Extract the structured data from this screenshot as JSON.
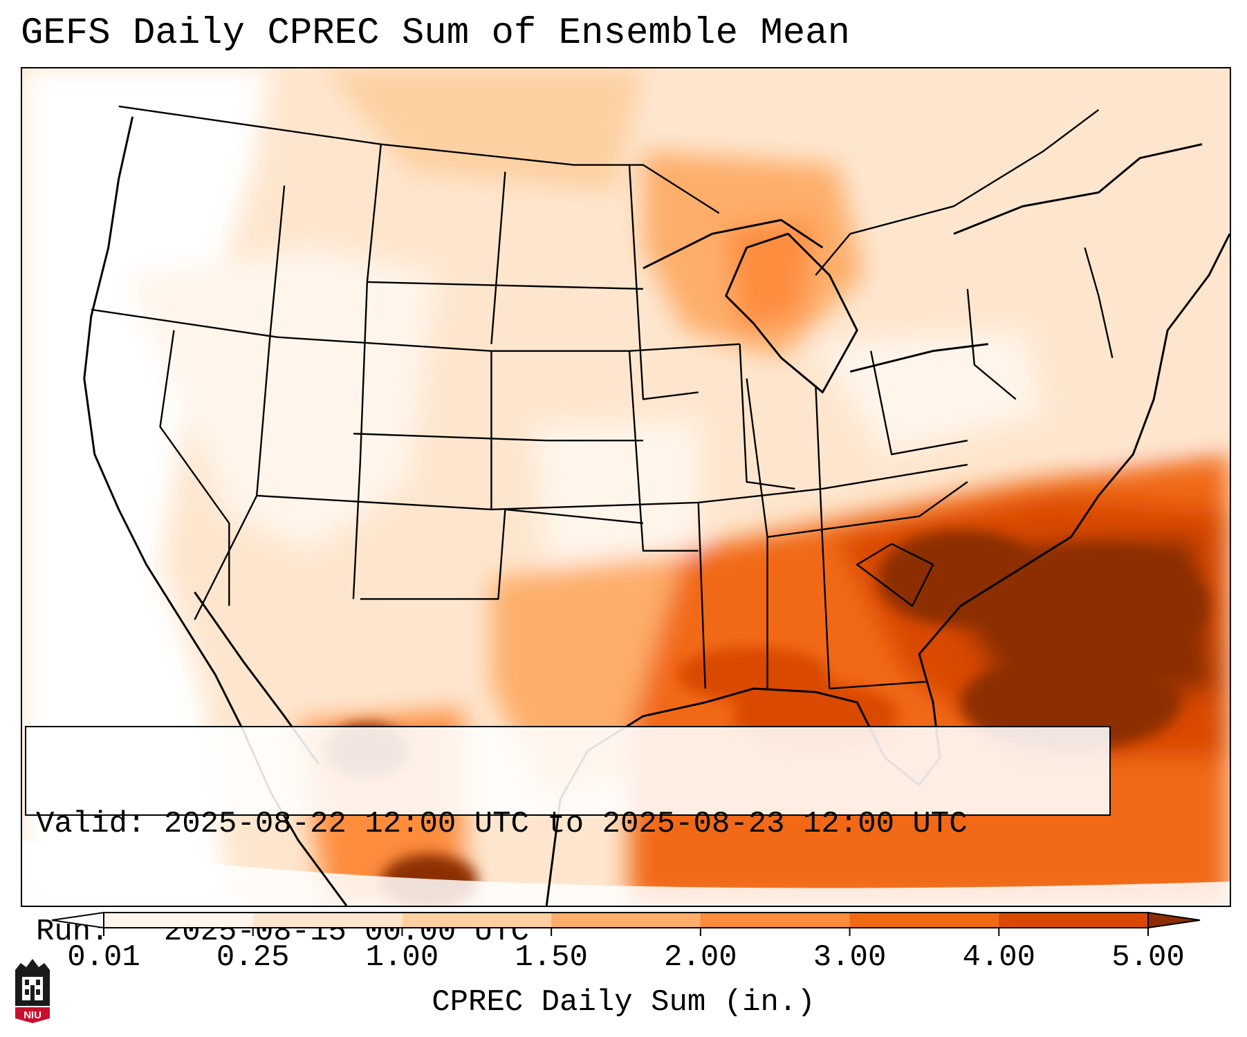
{
  "title": "GEFS Daily CPREC Sum of Ensemble Mean",
  "info": {
    "valid_line": "Valid: 2025-08-22 12:00 UTC to 2025-08-23 12:00 UTC",
    "run_line": "Run:   2025-08-15 00:00 UTC"
  },
  "colorbar": {
    "label": "CPREC Daily Sum (in.)",
    "ticks": [
      "0.01",
      "0.25",
      "1.00",
      "1.50",
      "2.00",
      "3.00",
      "4.00",
      "5.00"
    ],
    "colors": [
      "#fff5eb",
      "#fee6ce",
      "#fdd0a2",
      "#fdae6b",
      "#fd8d3c",
      "#f16913",
      "#d94801",
      "#8c2d04"
    ],
    "under_color": "#ffffff",
    "over_color": "#8c2d04"
  },
  "logo": {
    "text": "NIU",
    "color": "#c8102e"
  }
}
